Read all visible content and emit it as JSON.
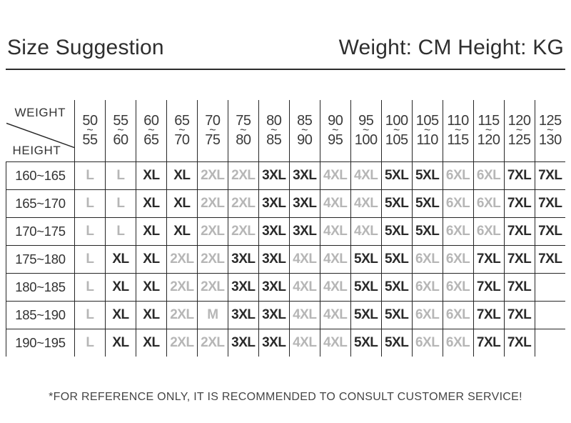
{
  "header": {
    "title": "Size Suggestion",
    "subtitle": "Weight: CM Height: KG"
  },
  "table": {
    "corner": {
      "top_label": "WEIGHT",
      "bottom_label": "HEIGHT"
    },
    "weight_columns": [
      {
        "from": "50",
        "to": "55"
      },
      {
        "from": "55",
        "to": "60"
      },
      {
        "from": "60",
        "to": "65"
      },
      {
        "from": "65",
        "to": "70"
      },
      {
        "from": "70",
        "to": "75"
      },
      {
        "from": "75",
        "to": "80"
      },
      {
        "from": "80",
        "to": "85"
      },
      {
        "from": "85",
        "to": "90"
      },
      {
        "from": "90",
        "to": "95"
      },
      {
        "from": "95",
        "to": "100"
      },
      {
        "from": "100",
        "to": "105"
      },
      {
        "from": "105",
        "to": "110"
      },
      {
        "from": "110",
        "to": "115"
      },
      {
        "from": "115",
        "to": "120"
      },
      {
        "from": "120",
        "to": "125"
      },
      {
        "from": "125",
        "to": "130"
      }
    ],
    "rows": [
      {
        "height": "160~165",
        "sizes": [
          {
            "v": "L",
            "muted": true
          },
          {
            "v": "L",
            "muted": true
          },
          {
            "v": "XL",
            "muted": false
          },
          {
            "v": "XL",
            "muted": false
          },
          {
            "v": "2XL",
            "muted": true
          },
          {
            "v": "2XL",
            "muted": true
          },
          {
            "v": "3XL",
            "muted": false
          },
          {
            "v": "3XL",
            "muted": false
          },
          {
            "v": "4XL",
            "muted": true
          },
          {
            "v": "4XL",
            "muted": true
          },
          {
            "v": "5XL",
            "muted": false
          },
          {
            "v": "5XL",
            "muted": false
          },
          {
            "v": "6XL",
            "muted": true
          },
          {
            "v": "6XL",
            "muted": true
          },
          {
            "v": "7XL",
            "muted": false
          },
          {
            "v": "7XL",
            "muted": false
          }
        ]
      },
      {
        "height": "165~170",
        "sizes": [
          {
            "v": "L",
            "muted": true
          },
          {
            "v": "L",
            "muted": true
          },
          {
            "v": "XL",
            "muted": false
          },
          {
            "v": "XL",
            "muted": false
          },
          {
            "v": "2XL",
            "muted": true
          },
          {
            "v": "2XL",
            "muted": true
          },
          {
            "v": "3XL",
            "muted": false
          },
          {
            "v": "3XL",
            "muted": false
          },
          {
            "v": "4XL",
            "muted": true
          },
          {
            "v": "4XL",
            "muted": true
          },
          {
            "v": "5XL",
            "muted": false
          },
          {
            "v": "5XL",
            "muted": false
          },
          {
            "v": "6XL",
            "muted": true
          },
          {
            "v": "6XL",
            "muted": true
          },
          {
            "v": "7XL",
            "muted": false
          },
          {
            "v": "7XL",
            "muted": false
          }
        ]
      },
      {
        "height": "170~175",
        "sizes": [
          {
            "v": "L",
            "muted": true
          },
          {
            "v": "L",
            "muted": true
          },
          {
            "v": "XL",
            "muted": false
          },
          {
            "v": "XL",
            "muted": false
          },
          {
            "v": "2XL",
            "muted": true
          },
          {
            "v": "2XL",
            "muted": true
          },
          {
            "v": "3XL",
            "muted": false
          },
          {
            "v": "3XL",
            "muted": false
          },
          {
            "v": "4XL",
            "muted": true
          },
          {
            "v": "4XL",
            "muted": true
          },
          {
            "v": "5XL",
            "muted": false
          },
          {
            "v": "5XL",
            "muted": false
          },
          {
            "v": "6XL",
            "muted": true
          },
          {
            "v": "6XL",
            "muted": true
          },
          {
            "v": "7XL",
            "muted": false
          },
          {
            "v": "7XL",
            "muted": false
          }
        ]
      },
      {
        "height": "175~180",
        "sizes": [
          {
            "v": "L",
            "muted": true
          },
          {
            "v": "XL",
            "muted": false
          },
          {
            "v": "XL",
            "muted": false
          },
          {
            "v": "2XL",
            "muted": true
          },
          {
            "v": "2XL",
            "muted": true
          },
          {
            "v": "3XL",
            "muted": false
          },
          {
            "v": "3XL",
            "muted": false
          },
          {
            "v": "4XL",
            "muted": true
          },
          {
            "v": "4XL",
            "muted": true
          },
          {
            "v": "5XL",
            "muted": false
          },
          {
            "v": "5XL",
            "muted": false
          },
          {
            "v": "6XL",
            "muted": true
          },
          {
            "v": "6XL",
            "muted": true
          },
          {
            "v": "7XL",
            "muted": false
          },
          {
            "v": "7XL",
            "muted": false
          },
          {
            "v": "7XL",
            "muted": false
          }
        ]
      },
      {
        "height": "180~185",
        "sizes": [
          {
            "v": "L",
            "muted": true
          },
          {
            "v": "XL",
            "muted": false
          },
          {
            "v": "XL",
            "muted": false
          },
          {
            "v": "2XL",
            "muted": true
          },
          {
            "v": "2XL",
            "muted": true
          },
          {
            "v": "3XL",
            "muted": false
          },
          {
            "v": "3XL",
            "muted": false
          },
          {
            "v": "4XL",
            "muted": true
          },
          {
            "v": "4XL",
            "muted": true
          },
          {
            "v": "5XL",
            "muted": false
          },
          {
            "v": "5XL",
            "muted": false
          },
          {
            "v": "6XL",
            "muted": true
          },
          {
            "v": "6XL",
            "muted": true
          },
          {
            "v": "7XL",
            "muted": false
          },
          {
            "v": "7XL",
            "muted": false
          },
          {
            "v": "",
            "muted": false
          }
        ]
      },
      {
        "height": "185~190",
        "sizes": [
          {
            "v": "L",
            "muted": true
          },
          {
            "v": "XL",
            "muted": false
          },
          {
            "v": "XL",
            "muted": false
          },
          {
            "v": "2XL",
            "muted": true
          },
          {
            "v": "M",
            "muted": true
          },
          {
            "v": "3XL",
            "muted": false
          },
          {
            "v": "3XL",
            "muted": false
          },
          {
            "v": "4XL",
            "muted": true
          },
          {
            "v": "4XL",
            "muted": true
          },
          {
            "v": "5XL",
            "muted": false
          },
          {
            "v": "5XL",
            "muted": false
          },
          {
            "v": "6XL",
            "muted": true
          },
          {
            "v": "6XL",
            "muted": true
          },
          {
            "v": "7XL",
            "muted": false
          },
          {
            "v": "7XL",
            "muted": false
          },
          {
            "v": "",
            "muted": false
          }
        ]
      },
      {
        "height": "190~195",
        "sizes": [
          {
            "v": "L",
            "muted": true
          },
          {
            "v": "XL",
            "muted": false
          },
          {
            "v": "XL",
            "muted": false
          },
          {
            "v": "2XL",
            "muted": true
          },
          {
            "v": "2XL",
            "muted": true
          },
          {
            "v": "3XL",
            "muted": false
          },
          {
            "v": "3XL",
            "muted": false
          },
          {
            "v": "4XL",
            "muted": true
          },
          {
            "v": "4XL",
            "muted": true
          },
          {
            "v": "5XL",
            "muted": false
          },
          {
            "v": "5XL",
            "muted": false
          },
          {
            "v": "6XL",
            "muted": true
          },
          {
            "v": "6XL",
            "muted": true
          },
          {
            "v": "7XL",
            "muted": false
          },
          {
            "v": "7XL",
            "muted": false
          },
          {
            "v": "",
            "muted": false
          }
        ]
      }
    ]
  },
  "footer": {
    "note": "*FOR REFERENCE ONLY, IT IS RECOMMENDED TO CONSULT CUSTOMER SERVICE!"
  },
  "colors": {
    "ink": "#2b2b2b",
    "muted_size": "#b6b6b6",
    "line": "#262626"
  }
}
